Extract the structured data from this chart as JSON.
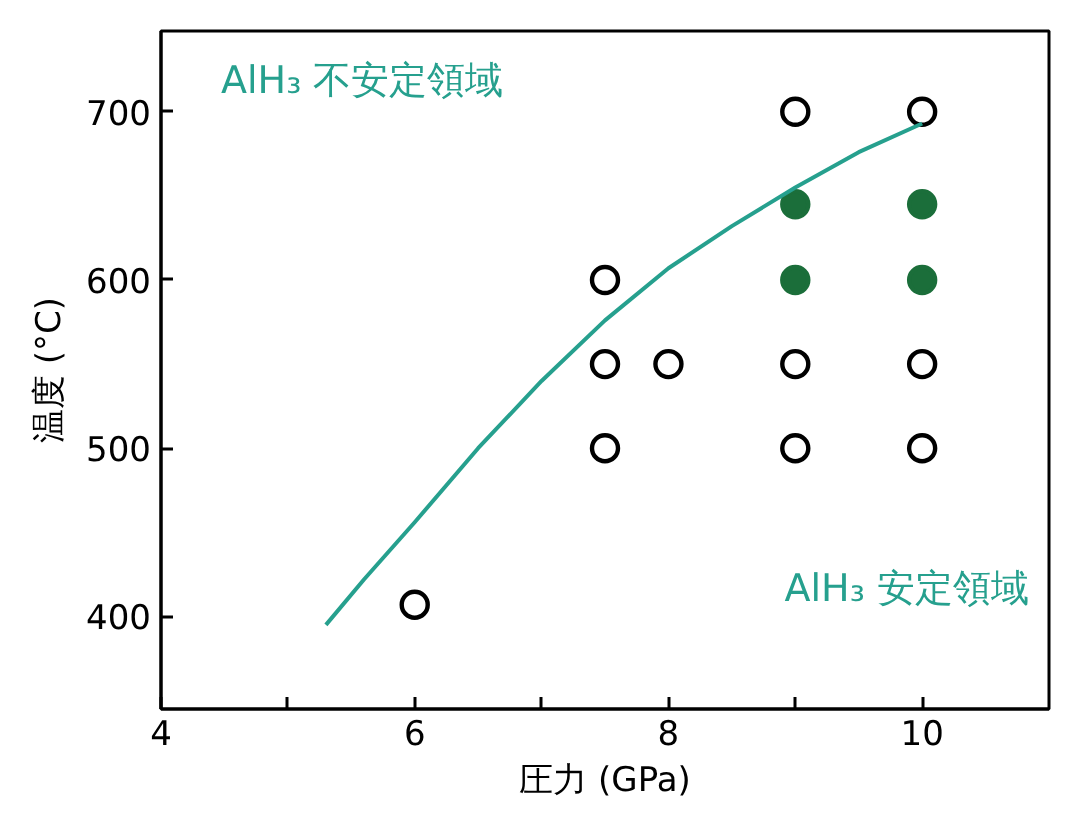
{
  "chart_data": {
    "type": "scatter",
    "xlabel": "圧力 (GPa)",
    "ylabel": "温度 (°C)",
    "annotations": [
      "AlH₃ 不安定領域",
      "AlH₃ 安定領域"
    ],
    "series": [
      {
        "marker": "circle",
        "color": "#000000",
        "x": [
          9,
          10,
          7.5,
          7.5,
          8,
          9,
          10,
          7.5,
          9,
          10,
          6
        ],
        "values": [
          700,
          700,
          600,
          550,
          550,
          550,
          550,
          500,
          500,
          500,
          407
        ]
      },
      {
        "marker": "circle",
        "color": "#1b6e3a",
        "x": [
          9,
          10,
          9,
          10
        ],
        "values": [
          645,
          645,
          600,
          600
        ]
      },
      {
        "type": "line",
        "marker": "none",
        "color": "#26a08e",
        "x": [
          5.3,
          5.6,
          6,
          6.5,
          7,
          7.5,
          8,
          8.5,
          9,
          9.5,
          10
        ],
        "values": [
          395,
          422,
          456,
          500,
          540,
          576,
          607,
          632,
          655,
          676,
          693
        ]
      }
    ],
    "xlim": [
      4,
      11
    ],
    "ylim": [
      345,
      748
    ],
    "xticks": [
      4,
      {
        "value": 5,
        "label": null
      },
      6,
      {
        "value": 7,
        "label": null
      },
      8,
      {
        "value": 9,
        "label": null
      },
      10
    ],
    "yticks": [
      400,
      500,
      600,
      700
    ],
    "grid": false
  }
}
